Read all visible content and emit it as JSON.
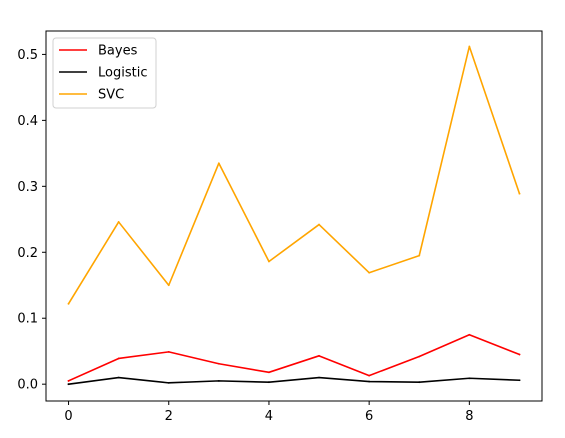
{
  "chart_data": {
    "type": "line",
    "title": "",
    "xlabel": "",
    "ylabel": "",
    "x": [
      0,
      1,
      2,
      3,
      4,
      5,
      6,
      7,
      8,
      9
    ],
    "xlim": [
      -0.45,
      9.45
    ],
    "ylim": [
      -0.0255,
      0.5355
    ],
    "xticks": [
      0,
      2,
      4,
      6,
      8
    ],
    "yticks": [
      0.0,
      0.1,
      0.2,
      0.3,
      0.4,
      0.5
    ],
    "xtick_labels": [
      "0",
      "2",
      "4",
      "6",
      "8"
    ],
    "ytick_labels": [
      "0.0",
      "0.1",
      "0.2",
      "0.3",
      "0.4",
      "0.5"
    ],
    "grid": false,
    "legend_position": "top-left",
    "series": [
      {
        "name": "Bayes",
        "color": "#ff0000",
        "values": [
          0.005,
          0.039,
          0.049,
          0.031,
          0.018,
          0.043,
          0.013,
          0.042,
          0.075,
          0.045
        ]
      },
      {
        "name": "Logistic",
        "color": "#000000",
        "values": [
          0.0,
          0.01,
          0.002,
          0.005,
          0.003,
          0.01,
          0.004,
          0.003,
          0.009,
          0.006
        ]
      },
      {
        "name": "SVC",
        "color": "#ffa500",
        "values": [
          0.122,
          0.246,
          0.15,
          0.335,
          0.186,
          0.242,
          0.169,
          0.195,
          0.512,
          0.289
        ]
      }
    ]
  }
}
